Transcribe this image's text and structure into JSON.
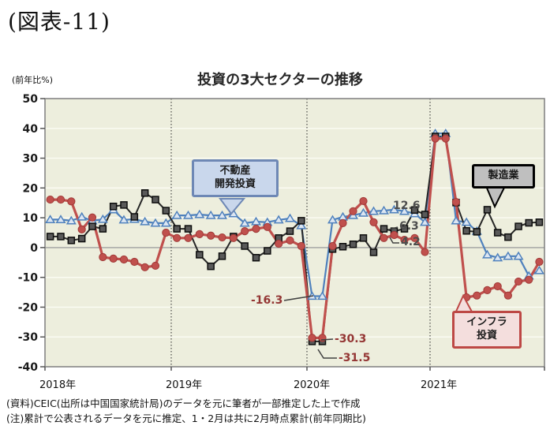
{
  "figure_label": "(図表-11)",
  "footnotes": [
    "(資料)CEIC(出所は中国国家統計局)のデータを元に筆者が一部推定した上で作成",
    "(注)累計で公表されるデータを元に推定、1・2月は共に2月時点累計(前年同期比)"
  ],
  "chart_data": {
    "type": "line",
    "title": "投資の3大セクターの推移",
    "y_unit_label": "(前年比%)",
    "ylabel": "前年比%",
    "ylim": [
      -40,
      50
    ],
    "grid": "horizontal white lines every 10, dotted vertical lines at year boundaries",
    "y_ticks": [
      50,
      40,
      30,
      20,
      10,
      0,
      -10,
      -20,
      -30,
      -40
    ],
    "x_year_labels": [
      "2018年",
      "2019年",
      "2020年",
      "2021年"
    ],
    "x_note": "月次系列(1月と2月は2月時点累計の前年同期比を両月に表示)、2018年1月～2021年11月",
    "years": [
      "2018",
      "2019",
      "2020",
      "2021"
    ],
    "series": [
      {
        "id": "real-estate",
        "name": "不動産開発投資",
        "marker": "triangle",
        "line_color": "#4f81bd",
        "marker_fill": "#dce6f2",
        "marker_stroke": "#4f81bd",
        "line_width": 2.2,
        "values_by_year": {
          "2018": [
            9.4,
            9.4,
            9.0,
            10.3,
            9.0,
            9.5,
            12.7,
            9.3,
            9.5,
            8.7,
            8.2,
            8.2
          ],
          "2019": [
            10.8,
            10.8,
            11.1,
            10.8,
            10.8,
            11.4,
            8.2,
            8.7,
            8.5,
            9.3,
            9.8,
            7.4
          ],
          "2020": [
            -16.3,
            -16.3,
            9.3,
            10.3,
            10.8,
            11.6,
            12.2,
            12.4,
            12.7,
            12.2,
            11.4,
            8.5
          ],
          "2021": [
            38.3,
            38.3,
            9.0,
            8.5,
            5.5,
            -2.4,
            -3.4,
            -2.9,
            -2.9,
            -9.5,
            -7.7
          ]
        }
      },
      {
        "id": "manufacturing",
        "name": "製造業",
        "marker": "square",
        "line_color": "#262626",
        "marker_fill": "#595959",
        "marker_stroke": "#0d0d0d",
        "line_width": 2,
        "values_by_year": {
          "2018": [
            3.7,
            3.7,
            2.4,
            3.0,
            7.1,
            6.3,
            13.8,
            14.3,
            10.3,
            18.3,
            16.1,
            12.4
          ],
          "2019": [
            6.3,
            6.3,
            -2.4,
            -6.3,
            -2.9,
            3.7,
            0.5,
            -3.4,
            -1.1,
            3.2,
            5.5,
            9.0
          ],
          "2020": [
            -31.5,
            -31.5,
            -0.5,
            0.3,
            1.1,
            3.2,
            -1.6,
            6.3,
            5.5,
            6.3,
            12.6,
            11.1
          ],
          "2021": [
            37.3,
            37.3,
            15.1,
            5.6,
            5.3,
            12.7,
            5.0,
            3.5,
            7.1,
            8.3,
            8.5
          ]
        }
      },
      {
        "id": "infrastructure",
        "name": "インフラ投資",
        "marker": "circle",
        "line_color": "#c0504d",
        "marker_fill": "#c0504d",
        "marker_stroke": "#a03937",
        "line_width": 3.2,
        "values_by_year": {
          "2018": [
            16.1,
            16.1,
            15.5,
            6.1,
            10.1,
            -3.2,
            -3.7,
            -4.0,
            -4.8,
            -6.6,
            -6.1,
            5.0
          ],
          "2019": [
            3.2,
            3.2,
            4.5,
            4.0,
            3.4,
            3.2,
            5.5,
            6.3,
            6.9,
            1.3,
            2.4,
            0.5
          ],
          "2020": [
            -30.3,
            -30.3,
            0.5,
            8.2,
            12.2,
            15.6,
            8.5,
            3.2,
            4.2,
            2.6,
            3.2,
            -1.5
          ],
          "2021": [
            36.6,
            36.6,
            15.3,
            -16.7,
            -16.1,
            -14.3,
            -13.0,
            -16.1,
            -11.4,
            -10.8,
            -4.8
          ]
        }
      }
    ],
    "callouts": [
      {
        "id": "real-estate",
        "lines": [
          "不動産",
          "開発投資"
        ],
        "fill": "#c9d7ec",
        "border": "#6e88b5"
      },
      {
        "id": "manufacturing",
        "lines": [
          "製造業"
        ],
        "fill": "#bfbfbf",
        "border": "#000000"
      },
      {
        "id": "infrastructure",
        "lines": [
          "インフラ",
          "投資"
        ],
        "fill": "#f4dedd",
        "border": "#bd4845"
      }
    ],
    "annotations": [
      {
        "text": "-16.3",
        "series": "不動産開発投資",
        "point": "2020年1-2月"
      },
      {
        "text": "-30.3",
        "series": "インフラ投資",
        "point": "2020年1-2月"
      },
      {
        "text": "-31.5",
        "series": "製造業",
        "point": "2020年1-2月"
      },
      {
        "text": "12.6",
        "series": "製造業",
        "point": "2020年11月"
      },
      {
        "text": "6.3",
        "series": "製造業",
        "point": "2020年10月"
      },
      {
        "text": "4.2",
        "series": "インフラ投資",
        "point": "2020年9月"
      }
    ],
    "plot_colors": {
      "background": "#edeedd",
      "gridline": "#fcfcf4",
      "zero_line": "#a0a0a0",
      "frame": "#7f7f7f"
    }
  }
}
